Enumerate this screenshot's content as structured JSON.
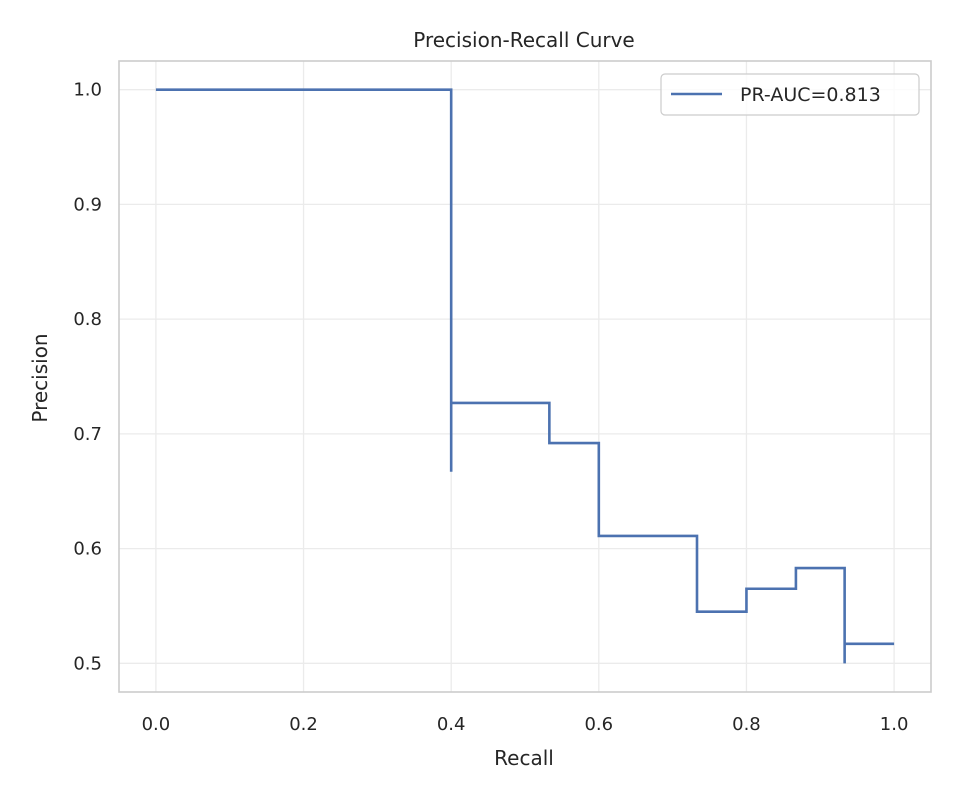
{
  "chart_data": {
    "type": "line",
    "title": "Precision-Recall Curve",
    "xlabel": "Recall",
    "ylabel": "Precision",
    "xlim": [
      -0.05,
      1.05
    ],
    "ylim": [
      0.475,
      1.025
    ],
    "xticks": [
      0.0,
      0.2,
      0.4,
      0.6,
      0.8,
      1.0
    ],
    "xtick_labels": [
      "0.0",
      "0.2",
      "0.4",
      "0.6",
      "0.8",
      "1.0"
    ],
    "yticks": [
      0.5,
      0.6,
      0.7,
      0.8,
      0.9,
      1.0
    ],
    "ytick_labels": [
      "0.5",
      "0.6",
      "0.7",
      "0.8",
      "0.9",
      "1.0"
    ],
    "grid": true,
    "legend_position": "top-right",
    "series": [
      {
        "name": "PR-AUC=0.813",
        "color": "#4c72b0",
        "step": "post",
        "x": [
          0.0,
          0.4,
          0.4,
          0.4,
          0.533,
          0.6,
          0.733,
          0.8,
          0.867,
          0.933,
          0.933,
          1.0
        ],
        "y": [
          1.0,
          1.0,
          0.667,
          0.727,
          0.692,
          0.611,
          0.545,
          0.565,
          0.583,
          0.5,
          0.517,
          0.517
        ]
      }
    ]
  }
}
